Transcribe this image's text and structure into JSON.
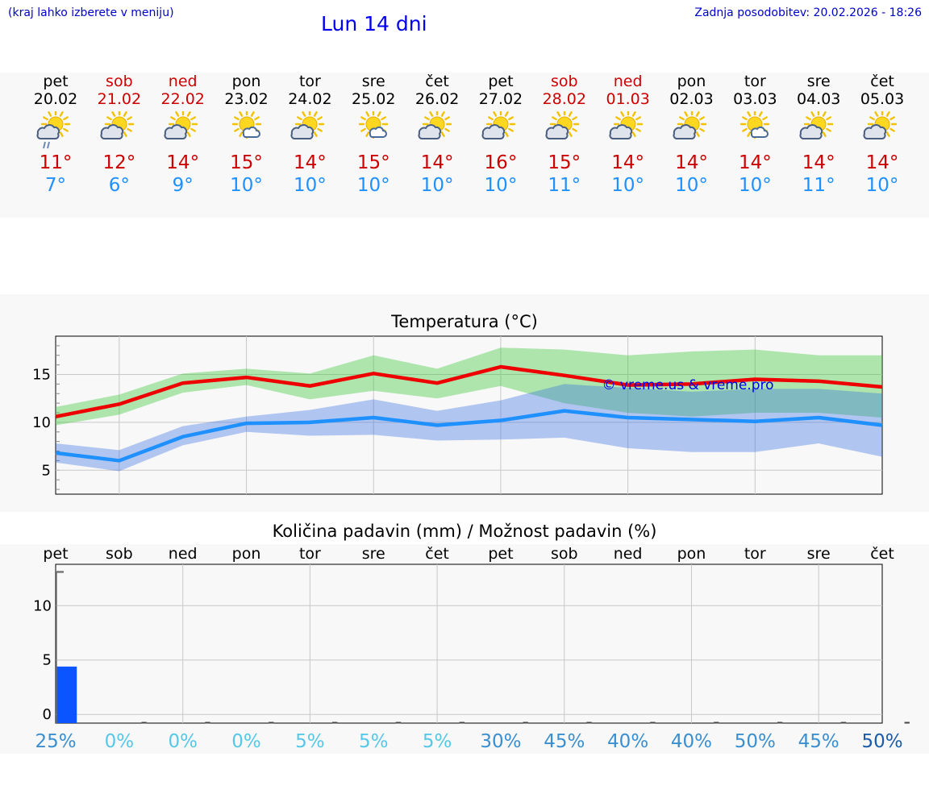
{
  "header": {
    "location_note": "(kraj lahko izberete v meniju)",
    "title": "Lun 14 dni",
    "last_update": "Zadnja posodobitev: 20.02.2026 - 18:26"
  },
  "colors": {
    "weekend": "#cc0000",
    "max_temp": "#cc0000",
    "min_temp": "#1e90ff",
    "bar": "#0a55ff"
  },
  "days": [
    {
      "name": "pet",
      "date": "20.02",
      "weekend": false,
      "icon": "partly-sunny-rain-icon",
      "tmax": "11°",
      "tmin": "7°"
    },
    {
      "name": "sob",
      "date": "21.02",
      "weekend": true,
      "icon": "partly-sunny-cloud-icon",
      "tmax": "12°",
      "tmin": "6°"
    },
    {
      "name": "ned",
      "date": "22.02",
      "weekend": true,
      "icon": "partly-sunny-cloud-icon",
      "tmax": "14°",
      "tmin": "9°"
    },
    {
      "name": "pon",
      "date": "23.02",
      "weekend": false,
      "icon": "sunny-small-cloud-icon",
      "tmax": "15°",
      "tmin": "10°"
    },
    {
      "name": "tor",
      "date": "24.02",
      "weekend": false,
      "icon": "partly-sunny-cloud-icon",
      "tmax": "14°",
      "tmin": "10°"
    },
    {
      "name": "sre",
      "date": "25.02",
      "weekend": false,
      "icon": "sunny-small-cloud-icon",
      "tmax": "15°",
      "tmin": "10°"
    },
    {
      "name": "čet",
      "date": "26.02",
      "weekend": false,
      "icon": "partly-sunny-cloud-icon",
      "tmax": "14°",
      "tmin": "10°"
    },
    {
      "name": "pet",
      "date": "27.02",
      "weekend": false,
      "icon": "partly-sunny-cloud-icon",
      "tmax": "16°",
      "tmin": "10°"
    },
    {
      "name": "sob",
      "date": "28.02",
      "weekend": true,
      "icon": "partly-sunny-cloud-icon",
      "tmax": "15°",
      "tmin": "11°"
    },
    {
      "name": "ned",
      "date": "01.03",
      "weekend": true,
      "icon": "partly-sunny-cloud-icon",
      "tmax": "14°",
      "tmin": "10°"
    },
    {
      "name": "pon",
      "date": "02.03",
      "weekend": false,
      "icon": "partly-sunny-cloud-icon",
      "tmax": "14°",
      "tmin": "10°"
    },
    {
      "name": "tor",
      "date": "03.03",
      "weekend": false,
      "icon": "sunny-small-cloud-icon",
      "tmax": "14°",
      "tmin": "10°"
    },
    {
      "name": "sre",
      "date": "04.03",
      "weekend": false,
      "icon": "partly-sunny-cloud-icon",
      "tmax": "14°",
      "tmin": "11°"
    },
    {
      "name": "čet",
      "date": "05.03",
      "weekend": false,
      "icon": "partly-sunny-cloud-icon",
      "tmax": "14°",
      "tmin": "10°"
    }
  ],
  "chart_data": [
    {
      "type": "line",
      "title": "Temperatura (°C)",
      "watermark": "© vreme.us & vreme.pro",
      "xlabel": "",
      "ylabel": "",
      "ylim": [
        2.5,
        19
      ],
      "yticks": [
        5,
        10,
        15
      ],
      "x": [
        0,
        1,
        2,
        3,
        4,
        5,
        6,
        7,
        8,
        9,
        10,
        11,
        12,
        13
      ],
      "series": [
        {
          "name": "max",
          "color": "#ee0000",
          "values": [
            10.6,
            11.9,
            14.1,
            14.7,
            13.8,
            15.1,
            14.1,
            15.8,
            14.9,
            13.9,
            14.0,
            14.5,
            14.3,
            13.7
          ]
        },
        {
          "name": "max_range_low",
          "values": [
            9.7,
            10.8,
            13.1,
            13.9,
            12.4,
            13.3,
            12.5,
            13.8,
            12.0,
            11.0,
            10.6,
            11.0,
            11.0,
            10.5
          ]
        },
        {
          "name": "max_range_high",
          "values": [
            11.6,
            12.9,
            15.1,
            15.6,
            15.1,
            17.0,
            15.6,
            17.8,
            17.6,
            17.0,
            17.4,
            17.6,
            17.0,
            17.0
          ]
        },
        {
          "name": "min",
          "color": "#1e90ff",
          "values": [
            6.8,
            6.0,
            8.5,
            9.9,
            10.0,
            10.5,
            9.7,
            10.2,
            11.2,
            10.5,
            10.3,
            10.1,
            10.5,
            9.7
          ]
        },
        {
          "name": "min_range_low",
          "values": [
            5.8,
            4.9,
            7.6,
            9.0,
            8.6,
            8.7,
            8.1,
            8.2,
            8.4,
            7.3,
            6.9,
            6.9,
            7.8,
            6.4
          ]
        },
        {
          "name": "min_range_high",
          "values": [
            7.8,
            7.1,
            9.6,
            10.6,
            11.3,
            12.4,
            11.2,
            12.3,
            14.0,
            13.6,
            13.2,
            13.5,
            13.5,
            13.0
          ]
        }
      ]
    },
    {
      "type": "bar",
      "title": "Količina padavin (mm) / Možnost padavin (%)",
      "xlabel": "",
      "ylabel": "",
      "ylim": [
        -0.8,
        13.8
      ],
      "yticks": [
        0,
        5,
        10
      ],
      "categories": [
        "pet",
        "sob",
        "ned",
        "pon",
        "tor",
        "sre",
        "čet",
        "pet",
        "sob",
        "ned",
        "pon",
        "tor",
        "sre",
        "čet"
      ],
      "values": [
        4.4,
        0,
        0,
        0,
        0,
        0,
        0,
        0,
        0,
        0,
        0,
        0,
        0,
        0
      ],
      "range_high": [
        13.1,
        0,
        0,
        0,
        0,
        0,
        0,
        0,
        0,
        0,
        0,
        0,
        0,
        0
      ],
      "probability": [
        "25%",
        "0%",
        "0%",
        "0%",
        "5%",
        "5%",
        "5%",
        "30%",
        "45%",
        "40%",
        "40%",
        "50%",
        "45%",
        "50%"
      ],
      "probability_colors": [
        "#3a8fd0",
        "#55c8e8",
        "#55c8e8",
        "#55c8e8",
        "#55c8e8",
        "#55c8e8",
        "#55c8e8",
        "#3a8fd0",
        "#3a8fd0",
        "#3a8fd0",
        "#3a8fd0",
        "#3a8fd0",
        "#3a8fd0",
        "#1a5ca8"
      ]
    }
  ]
}
